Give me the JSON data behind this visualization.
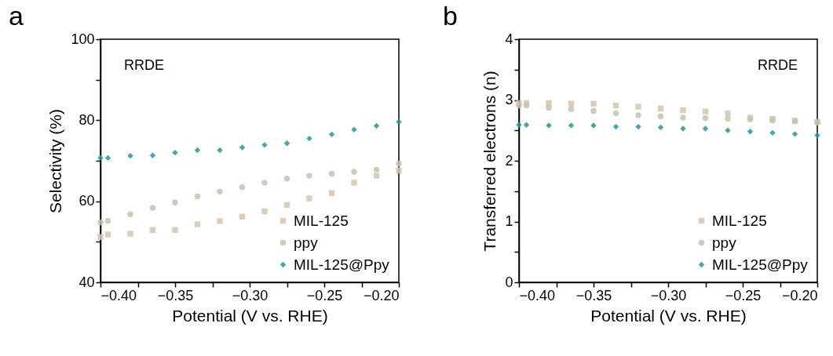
{
  "chart_data": [
    {
      "type": "scatter",
      "title": "a",
      "xlabel": "Potential (V vs. RHE)",
      "ylabel": "Selectivity (%)",
      "annotations": [
        "RRDE"
      ],
      "legend": "bottom right",
      "grid": false,
      "x": [
        -0.4,
        -0.395,
        -0.38,
        -0.365,
        -0.35,
        -0.335,
        -0.32,
        -0.305,
        -0.29,
        -0.275,
        -0.26,
        -0.245,
        -0.23,
        -0.215,
        -0.2
      ],
      "xlim": [
        -0.4,
        -0.2
      ],
      "ylim": [
        40,
        100
      ],
      "xticks": [
        {
          "value": -0.4,
          "label": "−0.40"
        },
        {
          "value": -0.375,
          "label": null
        },
        {
          "value": -0.35,
          "label": "−0.35"
        },
        {
          "value": -0.325,
          "label": null
        },
        {
          "value": -0.3,
          "label": "−0.30"
        },
        {
          "value": -0.275,
          "label": null
        },
        {
          "value": -0.25,
          "label": "−0.25"
        },
        {
          "value": -0.225,
          "label": null
        },
        {
          "value": -0.2,
          "label": "−0.20"
        }
      ],
      "yticks": [
        40,
        {
          "value": 50,
          "label": null
        },
        60,
        {
          "value": 70,
          "label": null
        },
        80,
        {
          "value": 90,
          "label": null
        },
        100
      ],
      "series": [
        {
          "name": "MIL-125",
          "color": "#d2c6ae",
          "marker": "square",
          "values": [
            51.2,
            51.8,
            52.0,
            52.9,
            52.9,
            54.3,
            55.1,
            56.2,
            57.5,
            59.1,
            60.7,
            62.0,
            64.6,
            66.3,
            67.6
          ]
        },
        {
          "name": "ppy",
          "color": "#c4c2b2",
          "marker": "circle",
          "values": [
            54.8,
            55.2,
            56.8,
            58.4,
            59.7,
            61.2,
            62.4,
            63.5,
            64.6,
            65.6,
            66.3,
            66.8,
            67.3,
            67.8,
            69.3
          ]
        },
        {
          "name": "MIL-125@Ppy",
          "color": "#2a9696",
          "marker": "diamond",
          "values": [
            70.7,
            70.7,
            71.2,
            71.3,
            72.0,
            72.6,
            72.6,
            73.3,
            73.9,
            74.3,
            75.5,
            76.5,
            77.7,
            78.6,
            79.6
          ]
        }
      ]
    },
    {
      "type": "scatter",
      "title": "b",
      "xlabel": "Potential (V vs. RHE)",
      "ylabel": "Transferred electrons (n)",
      "annotations": [
        "RRDE"
      ],
      "legend": "bottom right",
      "grid": false,
      "x": [
        -0.4,
        -0.395,
        -0.38,
        -0.365,
        -0.35,
        -0.335,
        -0.32,
        -0.305,
        -0.29,
        -0.275,
        -0.26,
        -0.245,
        -0.23,
        -0.215,
        -0.2
      ],
      "xlim": [
        -0.4,
        -0.2
      ],
      "ylim": [
        0,
        4
      ],
      "xticks": [
        {
          "value": -0.4,
          "label": "−0.40"
        },
        {
          "value": -0.375,
          "label": null
        },
        {
          "value": -0.35,
          "label": "−0.35"
        },
        {
          "value": -0.325,
          "label": null
        },
        {
          "value": -0.3,
          "label": "−0.30"
        },
        {
          "value": -0.275,
          "label": null
        },
        {
          "value": -0.25,
          "label": "−0.25"
        },
        {
          "value": -0.225,
          "label": null
        },
        {
          "value": -0.2,
          "label": "−0.20"
        }
      ],
      "yticks": [
        0,
        {
          "value": 0.5,
          "label": null
        },
        1,
        {
          "value": 1.5,
          "label": null
        },
        2,
        {
          "value": 2.5,
          "label": null
        },
        3,
        {
          "value": 3.5,
          "label": null
        },
        4
      ],
      "series": [
        {
          "name": "MIL-125",
          "color": "#d2c6ae",
          "marker": "square",
          "values": [
            2.95,
            2.95,
            2.95,
            2.94,
            2.94,
            2.91,
            2.89,
            2.86,
            2.83,
            2.81,
            2.78,
            2.71,
            2.69,
            2.66,
            2.64
          ]
        },
        {
          "name": "ppy",
          "color": "#c4c2b2",
          "marker": "circle",
          "values": [
            2.91,
            2.91,
            2.87,
            2.85,
            2.82,
            2.78,
            2.75,
            2.73,
            2.71,
            2.7,
            2.69,
            2.68,
            2.66,
            2.65,
            2.63
          ]
        },
        {
          "name": "MIL-125@Ppy",
          "color": "#2a9696",
          "marker": "diamond",
          "values": [
            2.59,
            2.59,
            2.58,
            2.58,
            2.58,
            2.56,
            2.56,
            2.55,
            2.53,
            2.53,
            2.5,
            2.48,
            2.46,
            2.44,
            2.42
          ]
        }
      ]
    }
  ]
}
